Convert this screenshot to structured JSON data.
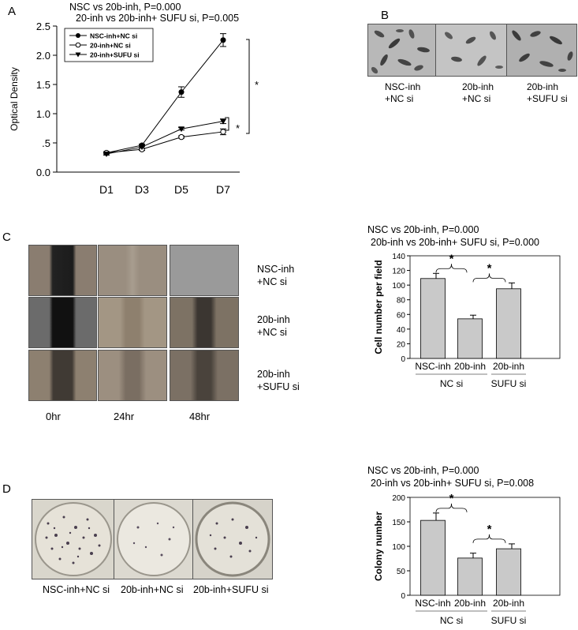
{
  "panels": {
    "A": {
      "letter": "A",
      "stats": [
        "NSC vs 20b-inh, P=0.000",
        "20-inh vs 20b-inh+ SUFU si, P=0.005"
      ],
      "star_top": "*",
      "star_bottom": "*"
    },
    "B": {
      "letter": "B",
      "captions": [
        [
          "NSC-inh",
          "+NC si"
        ],
        [
          "20b-inh",
          "+NC si"
        ],
        [
          "20b-inh",
          "+SUFU si"
        ]
      ]
    },
    "C": {
      "letter": "C",
      "row_labels": [
        [
          "NSC-inh",
          "+NC si"
        ],
        [
          "20b-inh",
          "+NC si"
        ],
        [
          "20b-inh",
          "+SUFU si"
        ]
      ],
      "time_labels": [
        "0hr",
        "24hr",
        "48hr"
      ],
      "stats": [
        "NSC vs 20b-inh, P=0.000",
        "20b-inh vs 20b-inh+ SUFU si, P=0.000"
      ]
    },
    "D": {
      "letter": "D",
      "captions": [
        "NSC-inh+NC si",
        "20b-inh+NC si",
        "20b-inh+SUFU si"
      ],
      "stats": [
        "NSC vs 20b-inh, P=0.000",
        "20-inh vs 20b-inh+ SUFU si, P=0.008"
      ]
    }
  },
  "colors": {
    "bar": "#c9c9c9",
    "line": "#000000"
  },
  "chart_data": [
    {
      "id": "A",
      "type": "line",
      "x": [
        "D1",
        "D3",
        "D5",
        "D7"
      ],
      "ylabel": "Optical Density",
      "ylim": [
        0,
        2.5
      ],
      "yticks": [
        "0.0",
        ".5",
        "1.0",
        "1.5",
        "2.0",
        "2.5"
      ],
      "ytick_values": [
        0,
        0.5,
        1.0,
        1.5,
        2.0,
        2.5
      ],
      "series": [
        {
          "name": "NSC-inh+NC si",
          "marker": "filled-circle",
          "values": [
            0.33,
            0.46,
            1.37,
            2.26
          ],
          "err": [
            0.02,
            0.02,
            0.09,
            0.11
          ]
        },
        {
          "name": "20-inh+NC si",
          "marker": "open-circle",
          "values": [
            0.33,
            0.39,
            0.6,
            0.69
          ],
          "err": [
            0.02,
            0.02,
            0.02,
            0.05
          ]
        },
        {
          "name": "20-inh+SUFU si",
          "marker": "triangle-down",
          "values": [
            0.31,
            0.43,
            0.74,
            0.87
          ],
          "err": [
            0.02,
            0.02,
            0.02,
            0.04
          ]
        }
      ],
      "legend": "top-left"
    },
    {
      "id": "C",
      "type": "bar",
      "categories": [
        "NSC-inh",
        "20b-inh",
        "20b-inh"
      ],
      "groups": [
        "NC si",
        "SUFU si"
      ],
      "values": [
        109,
        54,
        95
      ],
      "err": [
        7,
        5,
        8
      ],
      "ylabel": "Cell number per field",
      "ylim": [
        0,
        140
      ],
      "yticks": [
        "0",
        "20",
        "40",
        "60",
        "80",
        "100",
        "120",
        "140"
      ],
      "ytick_values": [
        0,
        20,
        40,
        60,
        80,
        100,
        120,
        140
      ],
      "sig_marks": [
        "*",
        "*"
      ]
    },
    {
      "id": "D",
      "type": "bar",
      "categories": [
        "NSC-inh",
        "20b-inh",
        "20b-inh"
      ],
      "groups": [
        "NC si",
        "SUFU si"
      ],
      "values": [
        153,
        76,
        95
      ],
      "err": [
        15,
        10,
        10
      ],
      "ylabel": "Colony number",
      "ylim": [
        0,
        200
      ],
      "yticks": [
        "0",
        "50",
        "100",
        "150",
        "200"
      ],
      "ytick_values": [
        0,
        50,
        100,
        150,
        200
      ],
      "sig_marks": [
        "*",
        "*"
      ]
    }
  ]
}
